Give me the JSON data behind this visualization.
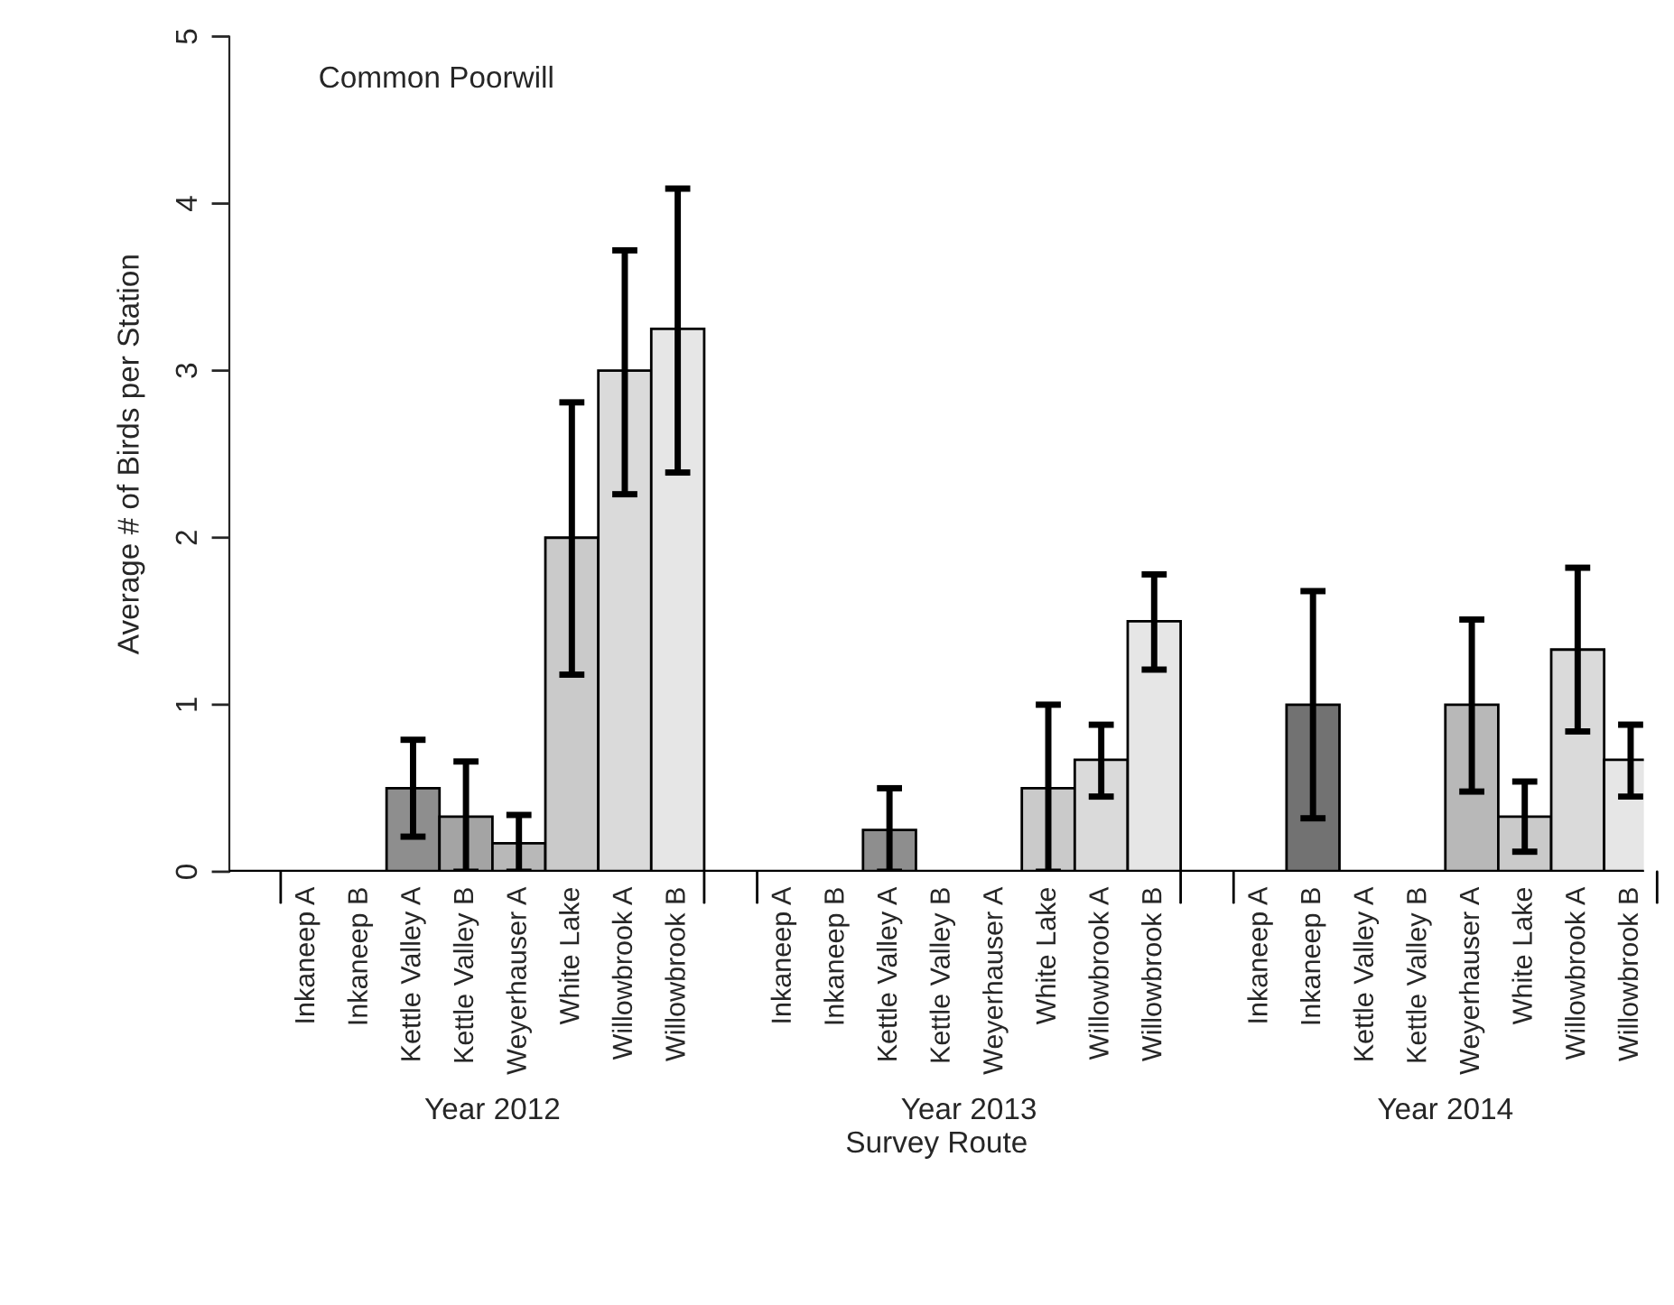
{
  "chart_data": {
    "type": "bar",
    "title": "Common Poorwill",
    "xlabel": "Survey Route",
    "ylabel": "Average # of Birds per Station",
    "categories": [
      "Inkaneep A",
      "Inkaneep B",
      "Kettle Valley A",
      "Kettle Valley B",
      "Weyerhauser A",
      "White Lake",
      "Willowbrook A",
      "Willowbrook B",
      "Inkaneep A",
      "Inkaneep B",
      "Kettle Valley A",
      "Kettle Valley B",
      "Weyerhauser A",
      "White Lake",
      "Willowbrook A",
      "Willowbrook B",
      "Inkaneep A",
      "Inkaneep B",
      "Kettle Valley A",
      "Kettle Valley B",
      "Weyerhauser A",
      "White Lake",
      "Willowbrook A",
      "Willowbrook B"
    ],
    "values": [
      0,
      0,
      0.5,
      0.33,
      0.17,
      2.0,
      3.0,
      3.25,
      0,
      0,
      0.25,
      0,
      0,
      0.5,
      0.67,
      1.5,
      0,
      1.0,
      0,
      0,
      1.0,
      0.33,
      1.33,
      0.67
    ],
    "errors": [
      null,
      null,
      [
        0.21,
        0.79
      ],
      [
        0,
        0.66
      ],
      [
        0,
        0.34
      ],
      [
        1.18,
        2.81
      ],
      [
        2.26,
        3.72
      ],
      [
        2.39,
        4.09
      ],
      null,
      null,
      [
        0,
        0.5
      ],
      null,
      null,
      [
        0,
        1.0
      ],
      [
        0.45,
        0.88
      ],
      [
        1.21,
        1.78
      ],
      null,
      [
        0.32,
        1.68
      ],
      null,
      null,
      [
        0.48,
        1.51
      ],
      [
        0.12,
        0.54
      ],
      [
        0.84,
        1.82
      ],
      [
        0.45,
        0.88
      ]
    ],
    "colors": [
      null,
      null,
      "#8e8e8e",
      "#a4a4a4",
      "#b8b8b8",
      "#cacaca",
      "#dadada",
      "#e6e6e6",
      null,
      null,
      "#8e8e8e",
      null,
      null,
      "#cacaca",
      "#dadada",
      "#e6e6e6",
      null,
      "#727272",
      null,
      null,
      "#b8b8b8",
      "#cacaca",
      "#dadada",
      "#e6e6e6"
    ],
    "ylim": [
      0,
      5
    ],
    "yticks": [
      0,
      1,
      2,
      3,
      4,
      5
    ],
    "annotations": [
      "Year 2012",
      "Year 2013",
      "Year 2014"
    ]
  }
}
